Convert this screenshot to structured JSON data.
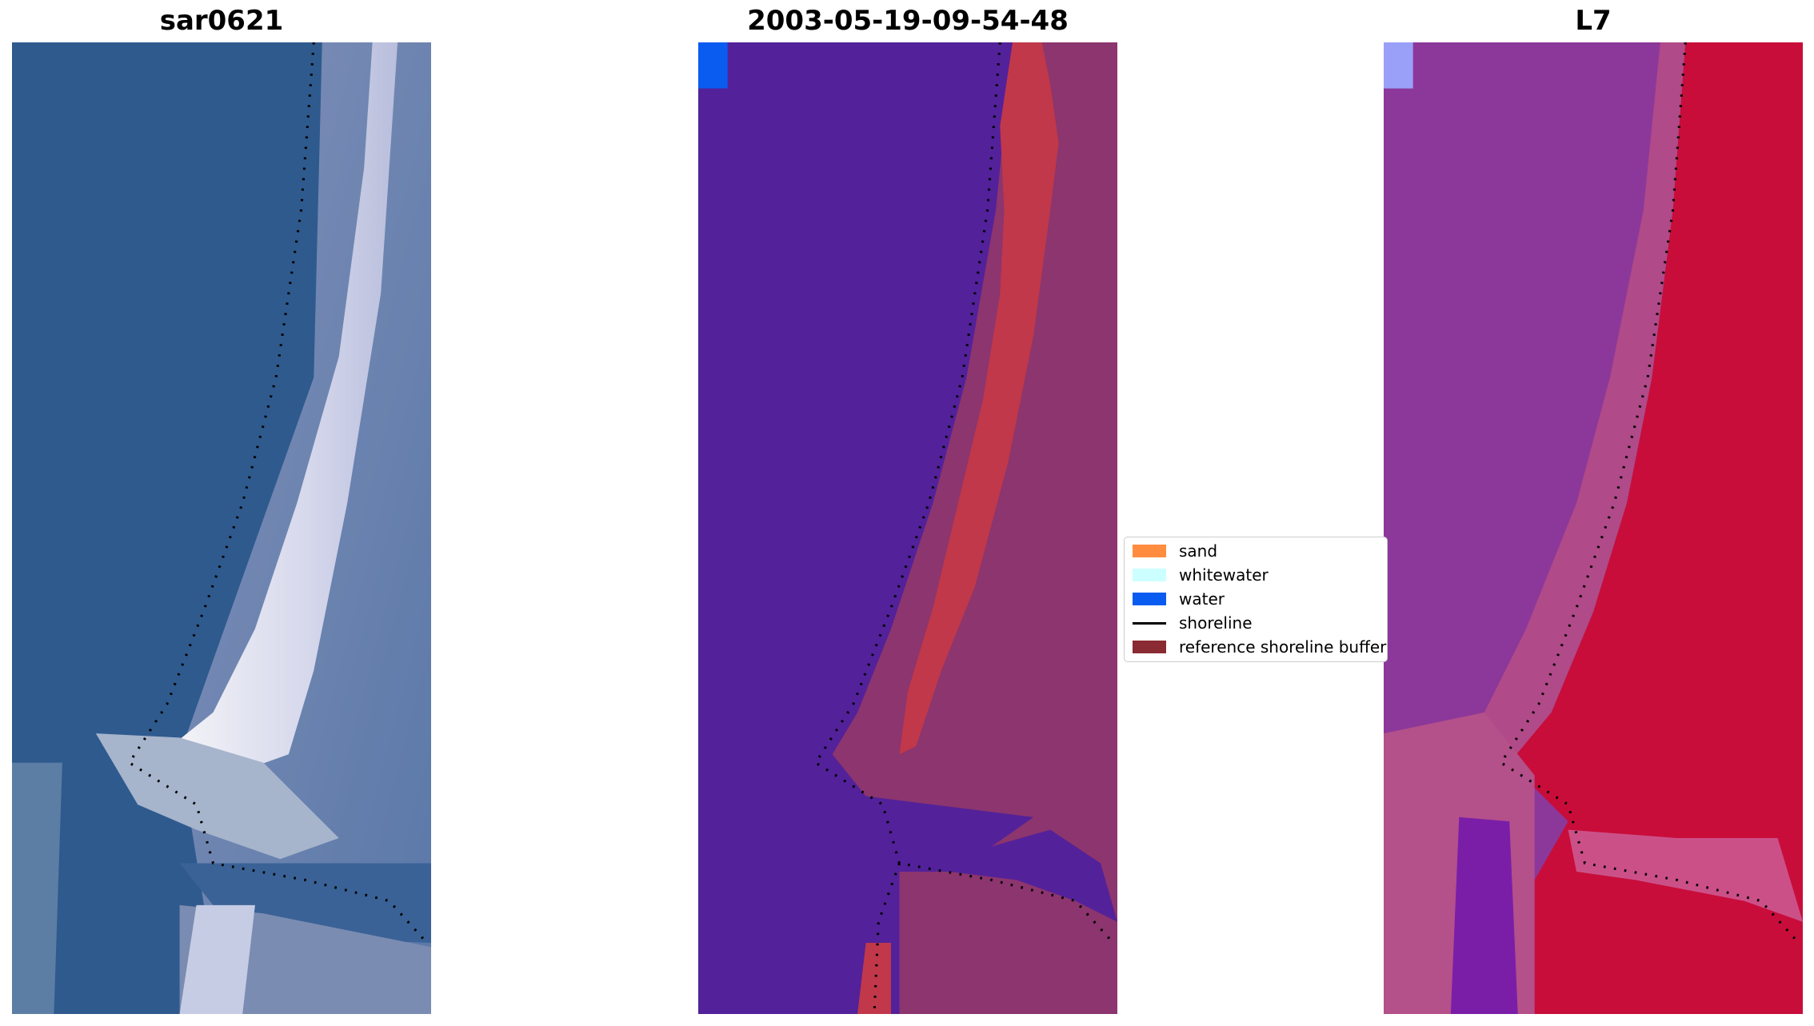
{
  "chart_data": [
    {
      "type": "image",
      "title": "sar0621",
      "axis": "off",
      "overlay": "shoreline (dotted black)"
    },
    {
      "type": "image",
      "title": "2003-05-19-09-54-48",
      "axis": "off",
      "overlay": "classified image with shoreline (dotted black)",
      "legend": {
        "placement": "center-right",
        "entries": [
          {
            "label": "sand",
            "kind": "patch",
            "color": "#ff8c3f"
          },
          {
            "label": "whitewater",
            "kind": "patch",
            "color": "#ccffff"
          },
          {
            "label": "water",
            "kind": "patch",
            "color": "#0a5cf0"
          },
          {
            "label": "shoreline",
            "kind": "line",
            "color": "#000000"
          },
          {
            "label": "reference shoreline buffer",
            "kind": "patch",
            "color": "#8a2a32"
          }
        ]
      }
    },
    {
      "type": "image",
      "title": "L7",
      "axis": "off",
      "overlay": "index image with shoreline (dotted black)"
    }
  ],
  "colors": {
    "rgb_water": "#2f5a8e",
    "rgb_beach": "#e8eaf4",
    "rgb_land": "#6a7fa8",
    "class_water": "#53219a",
    "class_buffer": "#c0384a",
    "class_land": "#8c356e",
    "class_blue_corner": "#0a5cf0",
    "index_water": "#8c389a",
    "index_land": "#c80d3a",
    "index_corner": "#9aa0f8"
  }
}
